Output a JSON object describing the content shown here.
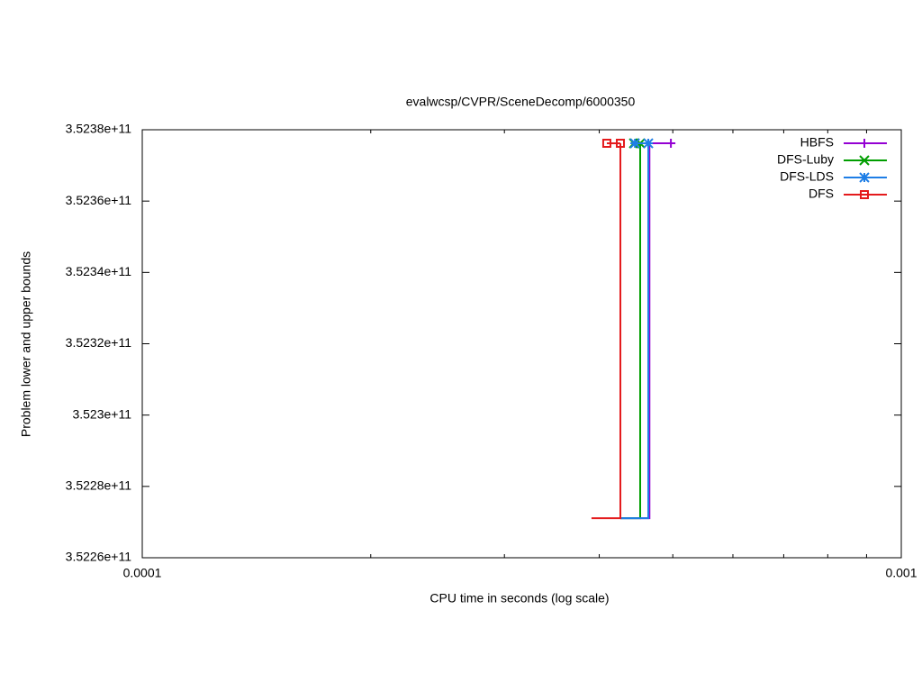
{
  "chart_data": {
    "type": "line",
    "title": "evalwcsp/CVPR/SceneDecomp/6000350",
    "x_label": "CPU time in seconds (log scale)",
    "y_label": "Problem lower and upper bounds",
    "x_log": true,
    "xlim": [
      0.0001,
      0.001
    ],
    "xticks": [
      0.0001,
      0.001
    ],
    "xminorticks": [
      0.0002,
      0.0003,
      0.0004,
      0.0005,
      0.0006,
      0.0007,
      0.0008,
      0.0009
    ],
    "ylim": [
      352260000000,
      352380000000
    ],
    "yticks": [
      {
        "value": 352260000000,
        "label": "3.5226e+11"
      },
      {
        "value": 352280000000,
        "label": "3.5228e+11"
      },
      {
        "value": 352300000000,
        "label": "3.523e+11"
      },
      {
        "value": 352320000000,
        "label": "3.5232e+11"
      },
      {
        "value": 352340000000,
        "label": "3.5234e+11"
      },
      {
        "value": 352360000000,
        "label": "3.5236e+11"
      },
      {
        "value": 352380000000,
        "label": "3.5238e+11"
      }
    ],
    "legend": "top-right",
    "series": [
      {
        "name": "HBFS",
        "color": "#9400d3",
        "marker": "plus",
        "x": [
          0.0004265,
          0.0004658,
          0.0004658
        ],
        "values": [
          352271100000,
          352271100000,
          352376200000
        ],
        "upper_x": [
          0.0004642,
          0.0004971
        ],
        "upper_values": [
          352376200000,
          352376200000
        ]
      },
      {
        "name": "DFS-Luby",
        "color": "#009e00",
        "marker": "cross",
        "x": [
          0.0004265,
          0.0004529,
          0.0004529
        ],
        "values": [
          352271100000,
          352271100000,
          352376200000
        ],
        "upper_x": [
          0.0004444,
          0.0004529
        ],
        "upper_values": [
          352376200000,
          352376200000
        ]
      },
      {
        "name": "DFS-LDS",
        "color": "#1e7ee6",
        "marker": "star",
        "x": [
          0.0004265,
          0.0004642,
          0.0004642
        ],
        "values": [
          352271100000,
          352271100000,
          352376200000
        ],
        "upper_x": [
          0.0004457,
          0.0004642
        ],
        "upper_values": [
          352376200000,
          352376200000
        ]
      },
      {
        "name": "DFS",
        "color": "#e41a1c",
        "marker": "square",
        "x": [
          0.0003907,
          0.0004265,
          0.0004265
        ],
        "values": [
          352271100000,
          352271100000,
          352376200000
        ],
        "upper_x": [
          0.0004093,
          0.0004265
        ],
        "upper_values": [
          352376200000,
          352376200000
        ]
      }
    ]
  }
}
